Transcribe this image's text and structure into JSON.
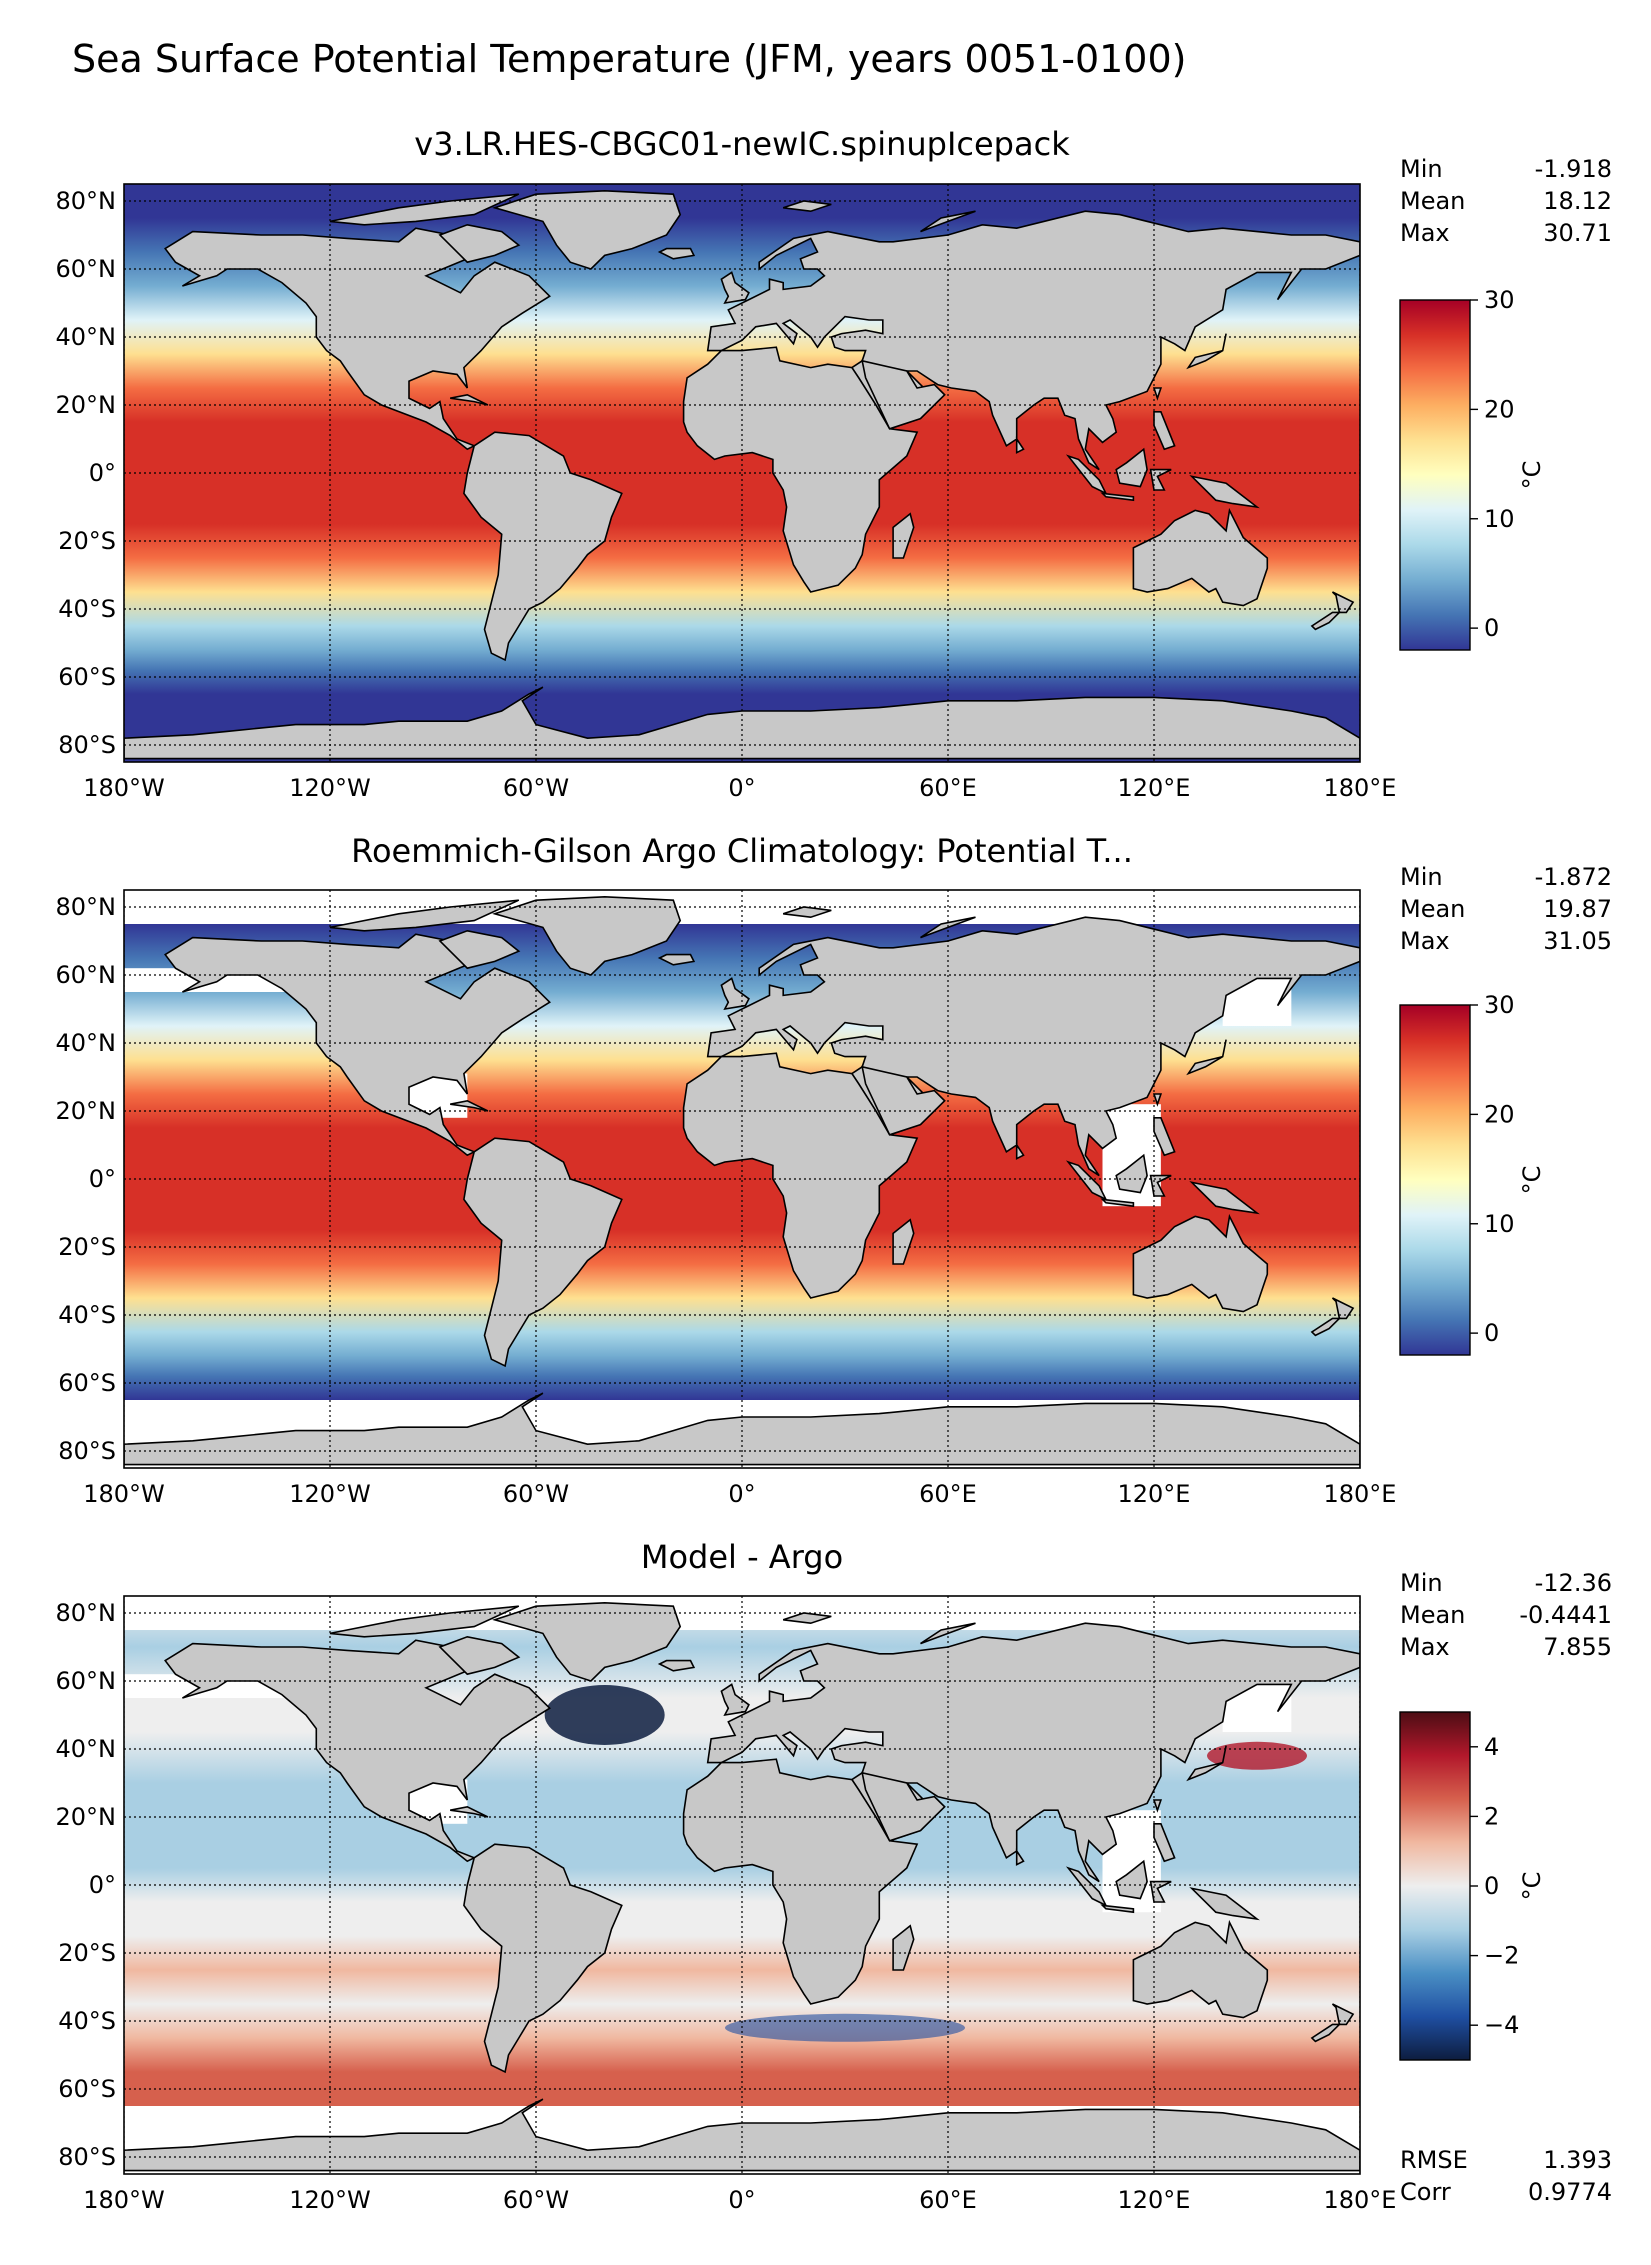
{
  "title": "Sea Surface Potential Temperature (JFM, years 0051-0100)",
  "lon_ticks": [
    "180°W",
    "120°W",
    "60°W",
    "0°",
    "60°E",
    "120°E",
    "180°E"
  ],
  "lat_ticks": [
    "80°N",
    "60°N",
    "40°N",
    "20°N",
    "0°",
    "20°S",
    "40°S",
    "60°S",
    "80°S"
  ],
  "colors": {
    "land": "#c8c8c8",
    "no_data": "#ffffff",
    "temperature_colormap": [
      "#313695",
      "#4575b4",
      "#74add1",
      "#abd9e9",
      "#e0f3f8",
      "#ffffbf",
      "#fee090",
      "#fdae61",
      "#f46d43",
      "#d73027",
      "#a50026"
    ],
    "difference_colormap": [
      "#0d1d3f",
      "#1f4fa2",
      "#4a8fc4",
      "#a9cfe3",
      "#eeeeee",
      "#f0b8a0",
      "#d6604d",
      "#b2182b",
      "#4d0d14"
    ]
  },
  "panels": [
    {
      "id": "model",
      "title": "v3.LR.HES-CBGC01-newIC.spinupIcepack",
      "stats": [
        {
          "label": "Min",
          "value": "-1.918"
        },
        {
          "label": "Mean",
          "value": "18.12"
        },
        {
          "label": "Max",
          "value": "30.71"
        }
      ],
      "colorbar": {
        "unit": "°C",
        "vmin": -2,
        "vmax": 30,
        "ticks": [
          "0",
          "10",
          "20",
          "30"
        ],
        "tick_values": [
          0,
          10,
          20,
          30
        ],
        "colormap": "temperature"
      },
      "extra_stats": []
    },
    {
      "id": "obs",
      "title": "Roemmich-Gilson Argo Climatology: Potential T...",
      "stats": [
        {
          "label": "Min",
          "value": "-1.872"
        },
        {
          "label": "Mean",
          "value": "19.87"
        },
        {
          "label": "Max",
          "value": "31.05"
        }
      ],
      "colorbar": {
        "unit": "°C",
        "vmin": -2,
        "vmax": 30,
        "ticks": [
          "0",
          "10",
          "20",
          "30"
        ],
        "tick_values": [
          0,
          10,
          20,
          30
        ],
        "colormap": "temperature"
      },
      "extra_stats": []
    },
    {
      "id": "diff",
      "title": "Model - Argo",
      "stats": [
        {
          "label": "Min",
          "value": "-12.36"
        },
        {
          "label": "Mean",
          "value": "-0.4441"
        },
        {
          "label": "Max",
          "value": "7.855"
        }
      ],
      "colorbar": {
        "unit": "°C",
        "vmin": -5,
        "vmax": 5,
        "ticks": [
          "4",
          "2",
          "0",
          "−2",
          "−4"
        ],
        "tick_values": [
          4,
          2,
          0,
          -2,
          -4
        ],
        "colormap": "difference"
      },
      "extra_stats": [
        {
          "label": "RMSE",
          "value": "1.393"
        },
        {
          "label": "Corr",
          "value": "0.9774"
        }
      ]
    }
  ]
}
